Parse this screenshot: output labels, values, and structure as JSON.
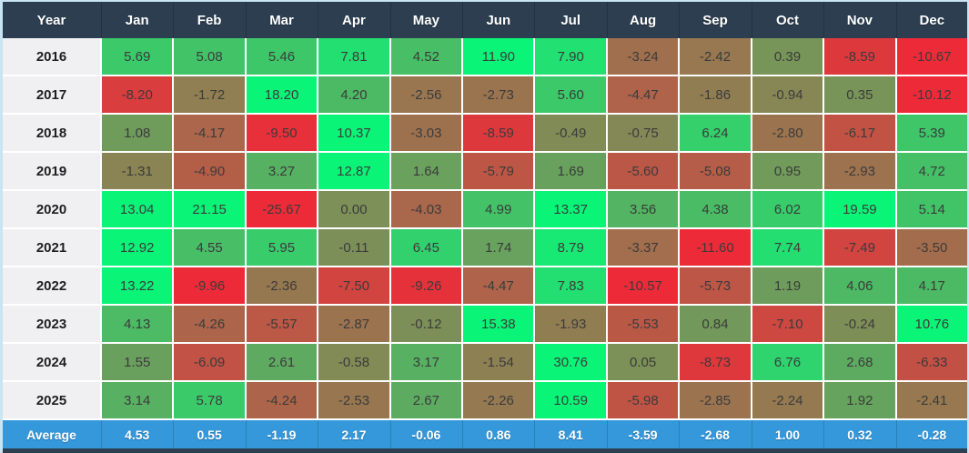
{
  "table": {
    "header": {
      "year_label": "Year",
      "months": [
        "Jan",
        "Feb",
        "Mar",
        "Apr",
        "May",
        "Jun",
        "Jul",
        "Aug",
        "Sep",
        "Oct",
        "Nov",
        "Dec"
      ]
    },
    "rows": [
      {
        "year": "2016",
        "values": [
          "5.69",
          "5.08",
          "5.46",
          "7.81",
          "4.52",
          "11.90",
          "7.90",
          "-3.24",
          "-2.42",
          "0.39",
          "-8.59",
          "-10.67"
        ]
      },
      {
        "year": "2017",
        "values": [
          "-8.20",
          "-1.72",
          "18.20",
          "4.20",
          "-2.56",
          "-2.73",
          "5.60",
          "-4.47",
          "-1.86",
          "-0.94",
          "0.35",
          "-10.12"
        ]
      },
      {
        "year": "2018",
        "values": [
          "1.08",
          "-4.17",
          "-9.50",
          "10.37",
          "-3.03",
          "-8.59",
          "-0.49",
          "-0.75",
          "6.24",
          "-2.80",
          "-6.17",
          "5.39"
        ]
      },
      {
        "year": "2019",
        "values": [
          "-1.31",
          "-4.90",
          "3.27",
          "12.87",
          "1.64",
          "-5.79",
          "1.69",
          "-5.60",
          "-5.08",
          "0.95",
          "-2.93",
          "4.72"
        ]
      },
      {
        "year": "2020",
        "values": [
          "13.04",
          "21.15",
          "-25.67",
          "0.00",
          "-4.03",
          "4.99",
          "13.37",
          "3.56",
          "4.38",
          "6.02",
          "19.59",
          "5.14"
        ]
      },
      {
        "year": "2021",
        "values": [
          "12.92",
          "4.55",
          "5.95",
          "-0.11",
          "6.45",
          "1.74",
          "8.79",
          "-3.37",
          "-11.60",
          "7.74",
          "-7.49",
          "-3.50"
        ]
      },
      {
        "year": "2022",
        "values": [
          "13.22",
          "-9.96",
          "-2.36",
          "-7.50",
          "-9.26",
          "-4.47",
          "7.83",
          "-10.57",
          "-5.73",
          "1.19",
          "4.06",
          "4.17"
        ]
      },
      {
        "year": "2023",
        "values": [
          "4.13",
          "-4.26",
          "-5.57",
          "-2.87",
          "-0.12",
          "15.38",
          "-1.93",
          "-5.53",
          "0.84",
          "-7.10",
          "-0.24",
          "10.76"
        ]
      },
      {
        "year": "2024",
        "values": [
          "1.55",
          "-6.09",
          "2.61",
          "-0.58",
          "3.17",
          "-1.54",
          "30.76",
          "0.05",
          "-8.73",
          "6.76",
          "2.68",
          "-6.33"
        ]
      },
      {
        "year": "2025",
        "values": [
          "3.14",
          "5.78",
          "-4.24",
          "-2.53",
          "2.67",
          "-2.26",
          "10.59",
          "-5.98",
          "-2.85",
          "-2.24",
          "1.92",
          "-2.41"
        ]
      }
    ],
    "average": {
      "label": "Average",
      "values": [
        "4.53",
        "0.55",
        "-1.19",
        "2.17",
        "-0.06",
        "0.86",
        "8.41",
        "-3.59",
        "-2.68",
        "1.00",
        "0.32",
        "-0.28"
      ]
    }
  },
  "heatmap": {
    "negative_color": "#ed2b38",
    "positive_color": "#0af578",
    "scale_min": -10,
    "scale_max": 10
  },
  "colors": {
    "header_bg": "#2c3e50",
    "header_text": "#ffffff",
    "year_col_bg": "#f0f0f2",
    "cell_text": "#3b3b3b",
    "average_bg": "#3498db",
    "average_text": "#ffffff",
    "grid_line": "#ffffff",
    "page_bg": "#c9e4f2",
    "footer_bar_bg": "#2c3e50"
  },
  "chart_data": {
    "type": "heatmap",
    "title": "",
    "columns": [
      "Jan",
      "Feb",
      "Mar",
      "Apr",
      "May",
      "Jun",
      "Jul",
      "Aug",
      "Sep",
      "Oct",
      "Nov",
      "Dec"
    ],
    "rows": [
      "2016",
      "2017",
      "2018",
      "2019",
      "2020",
      "2021",
      "2022",
      "2023",
      "2024",
      "2025"
    ],
    "values": [
      [
        5.69,
        5.08,
        5.46,
        7.81,
        4.52,
        11.9,
        7.9,
        -3.24,
        -2.42,
        0.39,
        -8.59,
        -10.67
      ],
      [
        -8.2,
        -1.72,
        18.2,
        4.2,
        -2.56,
        -2.73,
        5.6,
        -4.47,
        -1.86,
        -0.94,
        0.35,
        -10.12
      ],
      [
        1.08,
        -4.17,
        -9.5,
        10.37,
        -3.03,
        -8.59,
        -0.49,
        -0.75,
        6.24,
        -2.8,
        -6.17,
        5.39
      ],
      [
        -1.31,
        -4.9,
        3.27,
        12.87,
        1.64,
        -5.79,
        1.69,
        -5.6,
        -5.08,
        0.95,
        -2.93,
        4.72
      ],
      [
        13.04,
        21.15,
        -25.67,
        0.0,
        -4.03,
        4.99,
        13.37,
        3.56,
        4.38,
        6.02,
        19.59,
        5.14
      ],
      [
        12.92,
        4.55,
        5.95,
        -0.11,
        6.45,
        1.74,
        8.79,
        -3.37,
        -11.6,
        7.74,
        -7.49,
        -3.5
      ],
      [
        13.22,
        -9.96,
        -2.36,
        -7.5,
        -9.26,
        -4.47,
        7.83,
        -10.57,
        -5.73,
        1.19,
        4.06,
        4.17
      ],
      [
        4.13,
        -4.26,
        -5.57,
        -2.87,
        -0.12,
        15.38,
        -1.93,
        -5.53,
        0.84,
        -7.1,
        -0.24,
        10.76
      ],
      [
        1.55,
        -6.09,
        2.61,
        -0.58,
        3.17,
        -1.54,
        30.76,
        0.05,
        -8.73,
        6.76,
        2.68,
        -6.33
      ],
      [
        3.14,
        5.78,
        -4.24,
        -2.53,
        2.67,
        -2.26,
        10.59,
        -5.98,
        -2.85,
        -2.24,
        1.92,
        -2.41
      ]
    ],
    "average_row": {
      "label": "Average",
      "values": [
        4.53,
        0.55,
        -1.19,
        2.17,
        -0.06,
        0.86,
        8.41,
        -3.59,
        -2.68,
        1.0,
        0.32,
        -0.28
      ]
    },
    "color_scale": {
      "min": -10,
      "max": 10,
      "min_color": "#ed2b38",
      "max_color": "#0af578"
    },
    "legend": "none",
    "grid": true
  }
}
